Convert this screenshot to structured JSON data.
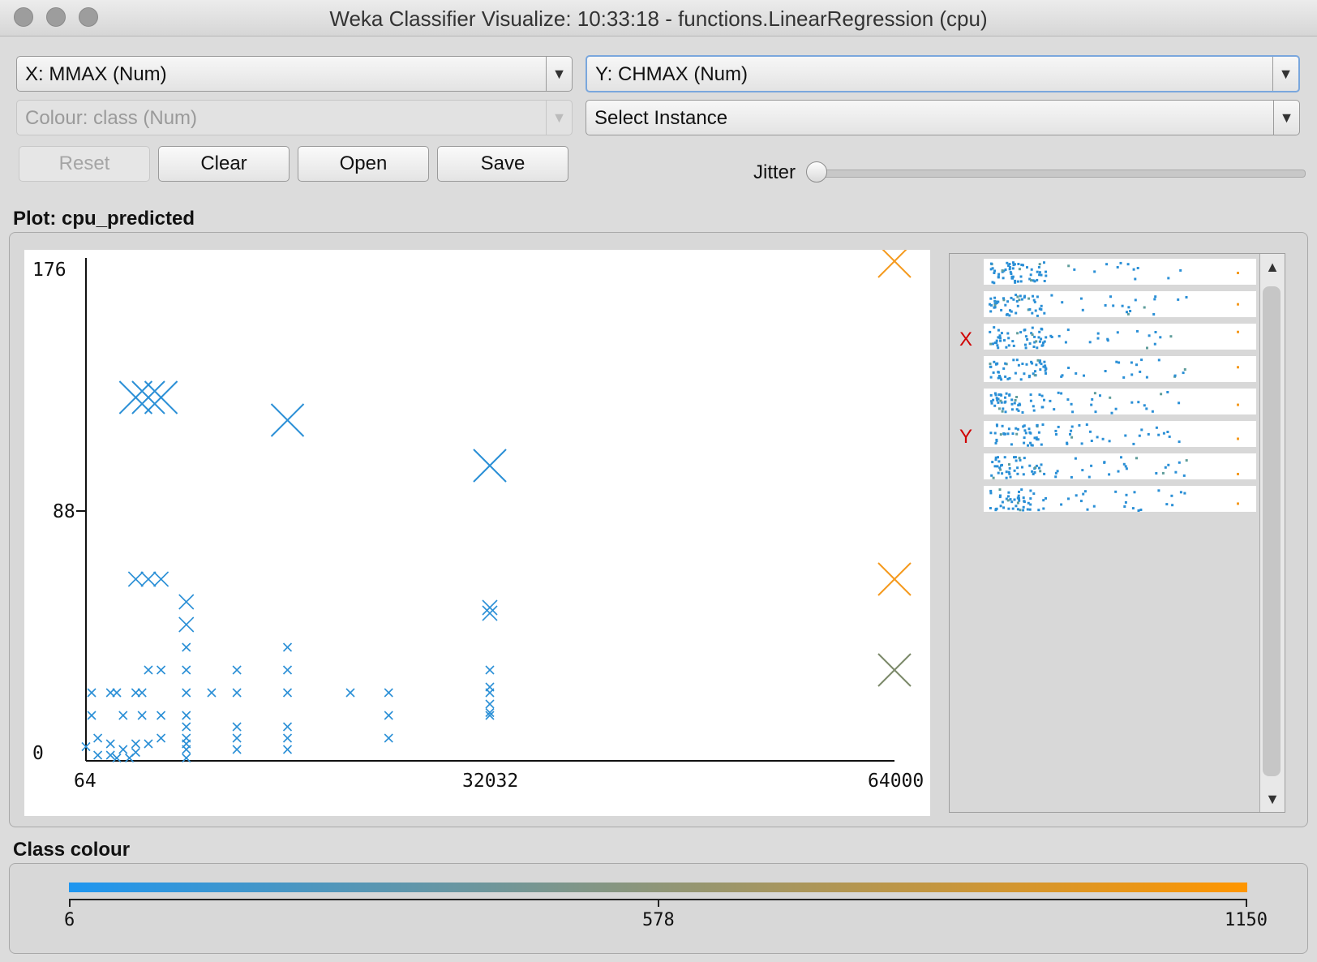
{
  "window": {
    "title": "Weka Classifier Visualize: 10:33:18 - functions.LinearRegression (cpu)"
  },
  "controls": {
    "x_axis": "X: MMAX (Num)",
    "y_axis": "Y: CHMAX (Num)",
    "colour": "Colour: class (Num)",
    "select_instance": "Select Instance",
    "reset": "Reset",
    "clear": "Clear",
    "open": "Open",
    "save": "Save",
    "jitter_label": "Jitter",
    "jitter_value": 0
  },
  "plot": {
    "section_title": "Plot: cpu_predicted",
    "x_ticks": [
      "64",
      "32032",
      "64000"
    ],
    "y_ticks": [
      "176",
      "88",
      "0"
    ],
    "x_label": "X",
    "y_label": "Y"
  },
  "class_colour": {
    "section_title": "Class colour",
    "ticks": [
      "6",
      "578",
      "1150"
    ],
    "low_color": "#1e96f0",
    "high_color": "#ff9600"
  },
  "chart_data": {
    "type": "scatter",
    "xlim": [
      64,
      64000
    ],
    "ylim": [
      0,
      176
    ],
    "marker": "x (size proportional to error)",
    "points": [
      {
        "x": 64,
        "y": 5
      },
      {
        "x": 512,
        "y": 24
      },
      {
        "x": 512,
        "y": 16
      },
      {
        "x": 1000,
        "y": 8
      },
      {
        "x": 1000,
        "y": 2
      },
      {
        "x": 2000,
        "y": 24
      },
      {
        "x": 2000,
        "y": 6
      },
      {
        "x": 2000,
        "y": 2
      },
      {
        "x": 2500,
        "y": 24
      },
      {
        "x": 2500,
        "y": 1
      },
      {
        "x": 3000,
        "y": 16
      },
      {
        "x": 3000,
        "y": 4
      },
      {
        "x": 3500,
        "y": 1
      },
      {
        "x": 4000,
        "y": 128
      },
      {
        "x": 4000,
        "y": 64
      },
      {
        "x": 4000,
        "y": 24
      },
      {
        "x": 4000,
        "y": 6
      },
      {
        "x": 4000,
        "y": 3
      },
      {
        "x": 4500,
        "y": 24
      },
      {
        "x": 4500,
        "y": 16
      },
      {
        "x": 5000,
        "y": 128
      },
      {
        "x": 5000,
        "y": 64
      },
      {
        "x": 5000,
        "y": 32
      },
      {
        "x": 5000,
        "y": 6
      },
      {
        "x": 6000,
        "y": 128
      },
      {
        "x": 6000,
        "y": 64
      },
      {
        "x": 6000,
        "y": 32
      },
      {
        "x": 6000,
        "y": 16
      },
      {
        "x": 6000,
        "y": 8
      },
      {
        "x": 8000,
        "y": 56
      },
      {
        "x": 8000,
        "y": 48
      },
      {
        "x": 8000,
        "y": 40
      },
      {
        "x": 8000,
        "y": 32
      },
      {
        "x": 8000,
        "y": 24
      },
      {
        "x": 8000,
        "y": 16
      },
      {
        "x": 8000,
        "y": 12
      },
      {
        "x": 8000,
        "y": 8
      },
      {
        "x": 8000,
        "y": 6
      },
      {
        "x": 8000,
        "y": 4
      },
      {
        "x": 8000,
        "y": 1
      },
      {
        "x": 10000,
        "y": 24
      },
      {
        "x": 12000,
        "y": 32
      },
      {
        "x": 12000,
        "y": 24
      },
      {
        "x": 12000,
        "y": 12
      },
      {
        "x": 12000,
        "y": 8
      },
      {
        "x": 12000,
        "y": 4
      },
      {
        "x": 16000,
        "y": 120
      },
      {
        "x": 16000,
        "y": 40
      },
      {
        "x": 16000,
        "y": 32
      },
      {
        "x": 16000,
        "y": 24
      },
      {
        "x": 16000,
        "y": 12
      },
      {
        "x": 16000,
        "y": 8
      },
      {
        "x": 16000,
        "y": 4
      },
      {
        "x": 20970,
        "y": 24
      },
      {
        "x": 24000,
        "y": 24
      },
      {
        "x": 24000,
        "y": 16
      },
      {
        "x": 24000,
        "y": 8
      },
      {
        "x": 32000,
        "y": 104
      },
      {
        "x": 32000,
        "y": 54
      },
      {
        "x": 32000,
        "y": 52
      },
      {
        "x": 32000,
        "y": 32
      },
      {
        "x": 32000,
        "y": 26
      },
      {
        "x": 32000,
        "y": 24
      },
      {
        "x": 32000,
        "y": 20
      },
      {
        "x": 32000,
        "y": 17
      },
      {
        "x": 32000,
        "y": 16
      },
      {
        "x": 64000,
        "y": 176
      },
      {
        "x": 64000,
        "y": 64
      },
      {
        "x": 64000,
        "y": 32
      }
    ]
  }
}
